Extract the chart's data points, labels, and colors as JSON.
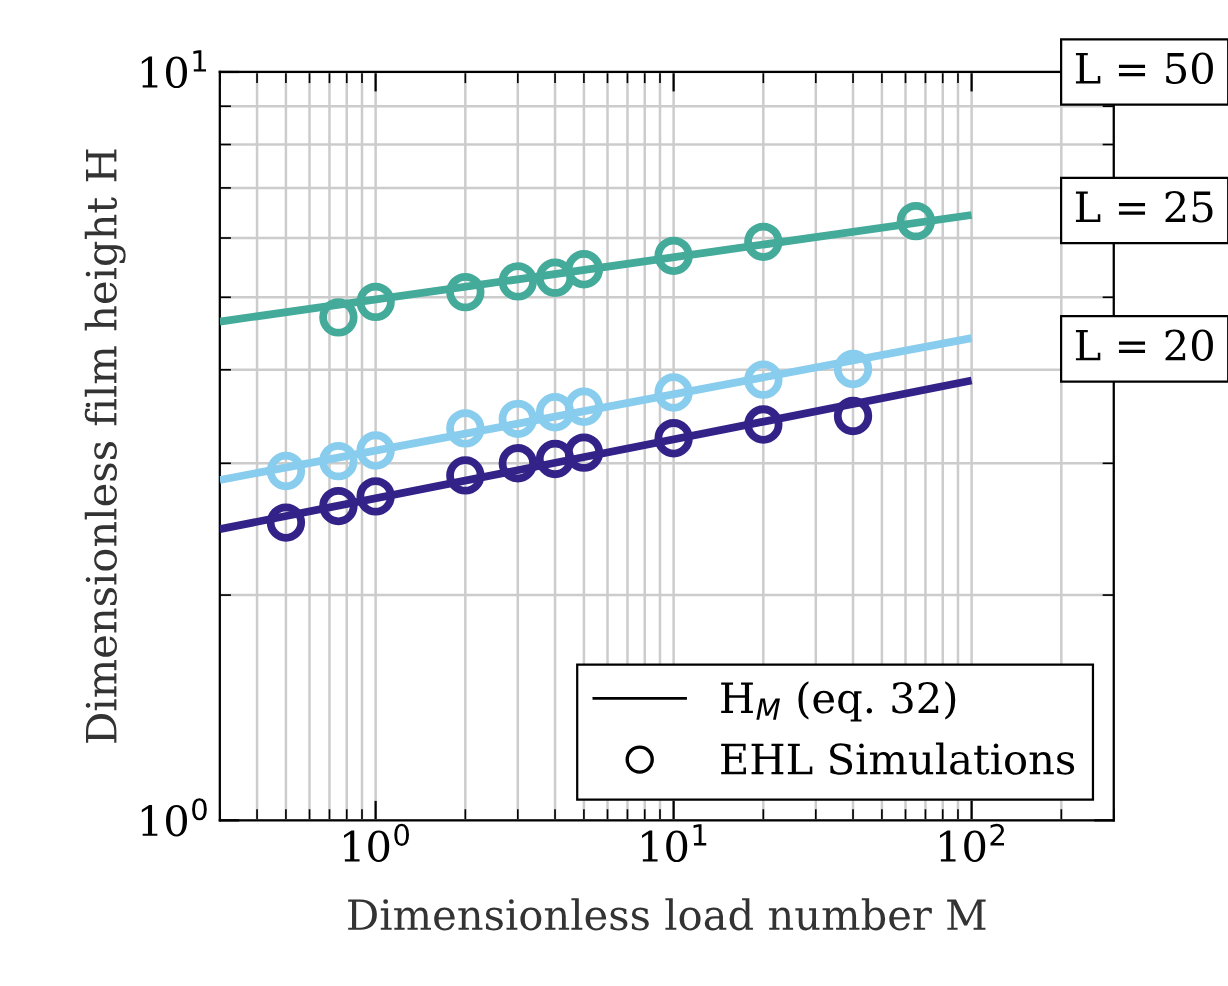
{
  "chart_data": {
    "type": "line",
    "xlabel": "Dimensionless load number M",
    "ylabel": "Dimensionless film height H",
    "log": "xy",
    "xlim": [
      0.3,
      300
    ],
    "ylim": [
      1,
      10
    ],
    "xticks": [
      {
        "value": 1,
        "label": "10$^{0}$"
      },
      {
        "value": 10,
        "label": "10$^{1}$"
      },
      {
        "value": 100,
        "label": "10$^{2}$"
      }
    ],
    "yticks": [
      {
        "value": 1,
        "label": "10$^{0}$"
      },
      {
        "value": 10,
        "label": "10$^{1}$"
      }
    ],
    "grid": true,
    "legend": "top right",
    "annotations": [
      "H$_{M}$ (eq. 32)",
      "EHL Simulations"
    ],
    "series": [
      {
        "name": "L = 50",
        "color": "#44aa99",
        "x": [
          0.3,
          100
        ],
        "values": [
          4.64,
          6.44
        ]
      },
      {
        "name": "L = 25",
        "color": "#88ccee",
        "x": [
          0.3,
          100
        ],
        "values": [
          2.85,
          4.41
        ]
      },
      {
        "name": "L = 20",
        "color": "#332288",
        "x": [
          0.3,
          100
        ],
        "values": [
          2.45,
          3.87
        ]
      },
      {
        "type": "scatter",
        "marker": "circle",
        "color": "#44aa99",
        "x": [
          0.75,
          1,
          2,
          3,
          4,
          5,
          10,
          20,
          65
        ],
        "values": [
          4.7,
          4.93,
          5.08,
          5.25,
          5.31,
          5.45,
          5.68,
          5.93,
          6.32
        ]
      },
      {
        "type": "scatter",
        "marker": "circle",
        "color": "#88ccee",
        "x": [
          0.5,
          0.75,
          1,
          2,
          3,
          4,
          5,
          10,
          20,
          40
        ],
        "values": [
          2.93,
          3.02,
          3.12,
          3.34,
          3.44,
          3.51,
          3.57,
          3.73,
          3.88,
          4.01
        ]
      },
      {
        "type": "scatter",
        "marker": "circle",
        "color": "#332288",
        "x": [
          0.5,
          0.75,
          1,
          2,
          3,
          4,
          5,
          10,
          20,
          40
        ],
        "values": [
          2.5,
          2.63,
          2.71,
          2.89,
          3.0,
          3.04,
          3.1,
          3.24,
          3.38,
          3.47
        ]
      }
    ]
  }
}
